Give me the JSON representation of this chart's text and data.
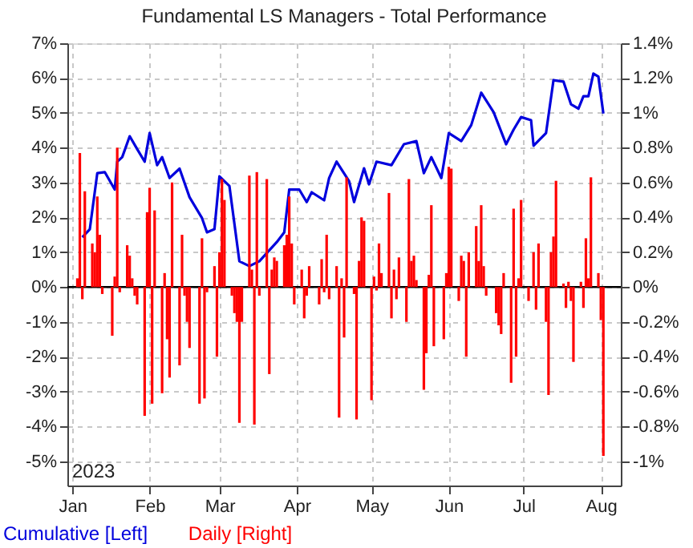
{
  "chart_data": {
    "type": "line",
    "title": "Fundamental LS Managers - Total Performance",
    "annotations": [
      "2023"
    ],
    "xlim": [
      "2022-12-30",
      "2023-08-09"
    ],
    "xticks": [
      {
        "value": "2023-01-01",
        "label": "Jan"
      },
      {
        "value": "2023-02-01",
        "label": "Feb"
      },
      {
        "value": "2023-03-01",
        "label": "Mar"
      },
      {
        "value": "2023-04-01",
        "label": "Apr"
      },
      {
        "value": "2023-05-01",
        "label": "May"
      },
      {
        "value": "2023-06-01",
        "label": "Jun"
      },
      {
        "value": "2023-07-01",
        "label": "Jul"
      },
      {
        "value": "2023-08-01",
        "label": "Aug"
      }
    ],
    "ylim": [
      -5.7,
      7
    ],
    "yticks": [
      {
        "value": -5,
        "label": "-5%"
      },
      {
        "value": -4,
        "label": "-4%"
      },
      {
        "value": -3,
        "label": "-3%"
      },
      {
        "value": -2,
        "label": "-2%"
      },
      {
        "value": -1,
        "label": "-1%"
      },
      {
        "value": 0,
        "label": "0%"
      },
      {
        "value": 1,
        "label": "1%"
      },
      {
        "value": 2,
        "label": "2%"
      },
      {
        "value": 3,
        "label": "3%"
      },
      {
        "value": 4,
        "label": "4%"
      },
      {
        "value": 5,
        "label": "5%"
      },
      {
        "value": 6,
        "label": "6%"
      },
      {
        "value": 7,
        "label": "7%"
      }
    ],
    "y2lim": [
      -1.14,
      1.4
    ],
    "y2ticks": [
      {
        "value": -1,
        "label": "-1%"
      },
      {
        "value": -0.8,
        "label": "-0.8%"
      },
      {
        "value": -0.6,
        "label": "-0.6%"
      },
      {
        "value": -0.4,
        "label": "-0.4%"
      },
      {
        "value": -0.2,
        "label": "-0.2%"
      },
      {
        "value": 0,
        "label": "0%"
      },
      {
        "value": 0.2,
        "label": "0.2%"
      },
      {
        "value": 0.4,
        "label": "0.4%"
      },
      {
        "value": 0.6,
        "label": "0.6%"
      },
      {
        "value": 0.8,
        "label": "0.8%"
      },
      {
        "value": 1,
        "label": "1%"
      },
      {
        "value": 1.2,
        "label": "1.2%"
      },
      {
        "value": 1.4,
        "label": "1.4%"
      }
    ],
    "grid": true,
    "legend": "bottom",
    "ref_lines": [
      {
        "axis": "y",
        "value": 0,
        "color": "#000000"
      }
    ],
    "series": [
      {
        "name": "Daily [Right]",
        "type": "bar",
        "axis": "y2",
        "color": "#ff0000",
        "x": [
          "2023-01-03",
          "2023-01-04",
          "2023-01-05",
          "2023-01-06",
          "2023-01-09",
          "2023-01-10",
          "2023-01-11",
          "2023-01-12",
          "2023-01-13",
          "2023-01-17",
          "2023-01-18",
          "2023-01-19",
          "2023-01-20",
          "2023-01-23",
          "2023-01-24",
          "2023-01-25",
          "2023-01-26",
          "2023-01-27",
          "2023-01-30",
          "2023-01-31",
          "2023-02-01",
          "2023-02-02",
          "2023-02-03",
          "2023-02-06",
          "2023-02-07",
          "2023-02-08",
          "2023-02-09",
          "2023-02-10",
          "2023-02-13",
          "2023-02-14",
          "2023-02-15",
          "2023-02-16",
          "2023-02-17",
          "2023-02-21",
          "2023-02-22",
          "2023-02-23",
          "2023-02-24",
          "2023-02-27",
          "2023-02-28",
          "2023-03-01",
          "2023-03-02",
          "2023-03-03",
          "2023-03-06",
          "2023-03-07",
          "2023-03-08",
          "2023-03-09",
          "2023-03-10",
          "2023-03-13",
          "2023-03-14",
          "2023-03-15",
          "2023-03-16",
          "2023-03-17",
          "2023-03-20",
          "2023-03-21",
          "2023-03-22",
          "2023-03-23",
          "2023-03-24",
          "2023-03-27",
          "2023-03-28",
          "2023-03-29",
          "2023-03-30",
          "2023-03-31",
          "2023-04-03",
          "2023-04-04",
          "2023-04-05",
          "2023-04-06",
          "2023-04-10",
          "2023-04-11",
          "2023-04-12",
          "2023-04-13",
          "2023-04-14",
          "2023-04-17",
          "2023-04-18",
          "2023-04-19",
          "2023-04-20",
          "2023-04-21",
          "2023-04-24",
          "2023-04-25",
          "2023-04-26",
          "2023-04-27",
          "2023-04-28",
          "2023-05-01",
          "2023-05-02",
          "2023-05-03",
          "2023-05-04",
          "2023-05-05",
          "2023-05-08",
          "2023-05-09",
          "2023-05-10",
          "2023-05-11",
          "2023-05-12",
          "2023-05-15",
          "2023-05-16",
          "2023-05-17",
          "2023-05-18",
          "2023-05-19",
          "2023-05-22",
          "2023-05-23",
          "2023-05-24",
          "2023-05-25",
          "2023-05-26",
          "2023-05-30",
          "2023-05-31",
          "2023-06-01",
          "2023-06-02",
          "2023-06-05",
          "2023-06-06",
          "2023-06-07",
          "2023-06-08",
          "2023-06-09",
          "2023-06-12",
          "2023-06-13",
          "2023-06-14",
          "2023-06-15",
          "2023-06-16",
          "2023-06-20",
          "2023-06-21",
          "2023-06-22",
          "2023-06-23",
          "2023-06-26",
          "2023-06-27",
          "2023-06-28",
          "2023-06-29",
          "2023-06-30",
          "2023-07-03",
          "2023-07-05",
          "2023-07-06",
          "2023-07-07",
          "2023-07-10",
          "2023-07-11",
          "2023-07-12",
          "2023-07-13",
          "2023-07-14",
          "2023-07-17",
          "2023-07-18",
          "2023-07-19",
          "2023-07-20",
          "2023-07-21",
          "2023-07-24",
          "2023-07-25",
          "2023-07-26",
          "2023-07-27",
          "2023-07-28",
          "2023-07-31",
          "2023-08-01",
          "2023-08-02"
        ],
        "values": [
          0.05,
          0.77,
          -0.07,
          0.55,
          0.25,
          0.2,
          0.52,
          0.3,
          -0.04,
          -0.28,
          0.06,
          0.8,
          -0.03,
          0.24,
          0.18,
          0.05,
          -0.05,
          -0.1,
          -0.74,
          0.43,
          0.57,
          -0.67,
          0.44,
          -0.61,
          0.08,
          -0.3,
          -0.52,
          0.6,
          -0.45,
          0.3,
          -0.05,
          -0.2,
          -0.35,
          -0.67,
          0.28,
          -0.64,
          -0.03,
          0.12,
          -0.4,
          0.2,
          0.62,
          0.5,
          -0.05,
          -0.15,
          -0.2,
          -0.78,
          -0.2,
          0.64,
          0.1,
          -0.79,
          0.66,
          -0.05,
          0.62,
          -0.5,
          0.1,
          0.17,
          0.15,
          0.24,
          0.3,
          0.52,
          0.25,
          -0.1,
          0.1,
          -0.18,
          -0.05,
          0.12,
          -0.1,
          0.16,
          -0.03,
          0.3,
          -0.07,
          0.12,
          -0.75,
          0.05,
          -0.29,
          0.63,
          -0.04,
          -0.76,
          0.15,
          0.4,
          0.38,
          -0.65,
          0.06,
          -0.02,
          0.25,
          0.08,
          0.54,
          -0.18,
          0.1,
          -0.07,
          0.17,
          -0.2,
          0.62,
          0.15,
          0.18,
          0.04,
          -0.59,
          -0.38,
          0.07,
          0.47,
          -0.34,
          -0.3,
          0.08,
          0.69,
          0.68,
          -0.08,
          0.18,
          0.15,
          -0.4,
          0.2,
          0.35,
          0.15,
          0.47,
          0.12,
          -0.05,
          -0.15,
          -0.22,
          -0.27,
          0.08,
          -0.55,
          0.45,
          -0.4,
          0.05,
          0.5,
          -0.08,
          0.2,
          -0.13,
          0.25,
          -0.2,
          -0.62,
          0.2,
          0.29,
          0.61,
          0.02,
          -0.12,
          0.03,
          -0.08,
          -0.43,
          0.03,
          -0.12,
          0.28,
          0.05,
          0.63,
          0.08,
          -0.19,
          -0.97
        ]
      },
      {
        "name": "Cumulative [Left]",
        "color": "#0000dd",
        "x": [
          "2023-01-05",
          "2023-01-08",
          "2023-01-11",
          "2023-01-14",
          "2023-01-18",
          "2023-01-19",
          "2023-01-21",
          "2023-01-24",
          "2023-01-27",
          "2023-01-30",
          "2023-02-01",
          "2023-02-04",
          "2023-02-06",
          "2023-02-09",
          "2023-02-13",
          "2023-02-17",
          "2023-02-22",
          "2023-02-24",
          "2023-02-27",
          "2023-03-01",
          "2023-03-05",
          "2023-03-09",
          "2023-03-13",
          "2023-03-17",
          "2023-03-24",
          "2023-03-27",
          "2023-03-29",
          "2023-04-02",
          "2023-04-05",
          "2023-04-07",
          "2023-04-12",
          "2023-04-14",
          "2023-04-17",
          "2023-04-22",
          "2023-04-24",
          "2023-04-28",
          "2023-04-30",
          "2023-05-03",
          "2023-05-09",
          "2023-05-14",
          "2023-05-19",
          "2023-05-22",
          "2023-05-25",
          "2023-05-29",
          "2023-06-01",
          "2023-06-06",
          "2023-06-10",
          "2023-06-14",
          "2023-06-19",
          "2023-06-24",
          "2023-06-27",
          "2023-06-30",
          "2023-07-04",
          "2023-07-05",
          "2023-07-10",
          "2023-07-13",
          "2023-07-17",
          "2023-07-20",
          "2023-07-23",
          "2023-07-25",
          "2023-07-27",
          "2023-07-29",
          "2023-07-31",
          "2023-08-02"
        ],
        "values": [
          1.43,
          1.66,
          3.27,
          3.3,
          2.8,
          3.6,
          3.73,
          4.33,
          3.96,
          3.6,
          4.42,
          3.5,
          3.73,
          3.13,
          3.4,
          2.58,
          1.98,
          1.57,
          1.66,
          3.18,
          2.9,
          0.74,
          0.6,
          0.74,
          1.29,
          1.57,
          2.8,
          2.8,
          2.44,
          2.72,
          2.49,
          3.13,
          3.6,
          3.04,
          2.44,
          3.41,
          2.95,
          3.6,
          3.5,
          4.1,
          4.19,
          3.27,
          3.73,
          3.13,
          4.42,
          4.19,
          4.65,
          5.58,
          5.02,
          4.1,
          4.52,
          4.88,
          4.79,
          4.06,
          4.42,
          5.94,
          5.9,
          5.25,
          5.12,
          5.48,
          5.48,
          6.13,
          6.04,
          4.98
        ]
      }
    ]
  }
}
